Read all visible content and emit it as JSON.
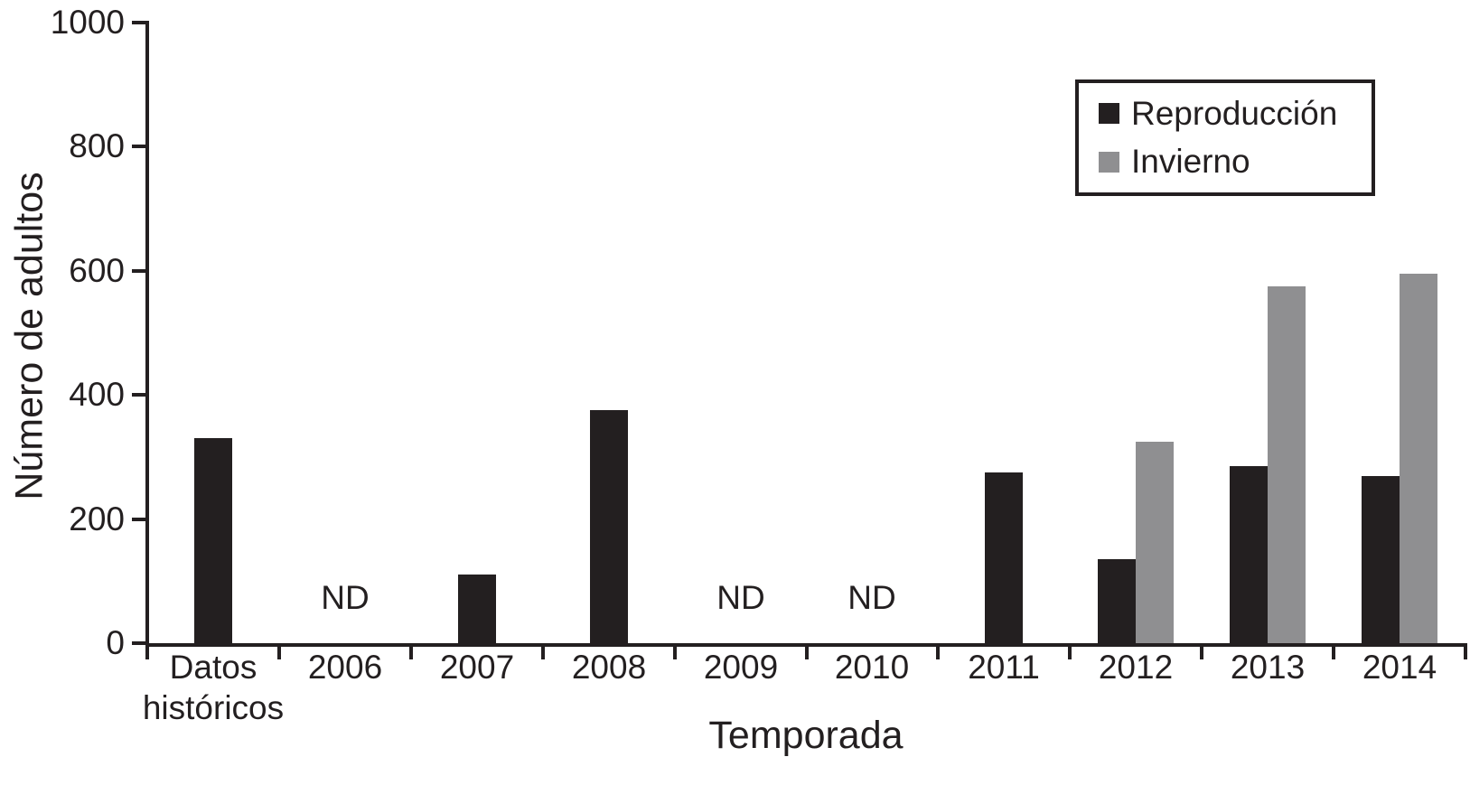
{
  "chart_data": {
    "type": "bar",
    "title": "",
    "xlabel": "Temporada",
    "ylabel": "Número de adultos",
    "ylim": [
      0,
      1000
    ],
    "yticks": [
      0,
      200,
      400,
      600,
      800,
      1000
    ],
    "categories": [
      "Datos\nhistóricos",
      "2006",
      "2007",
      "2008",
      "2009",
      "2010",
      "2011",
      "2012",
      "2013",
      "2014"
    ],
    "no_data_label": "ND",
    "no_data_categories": [
      "2006",
      "2009",
      "2010"
    ],
    "grid": "off",
    "legend_position": "top-right",
    "series": [
      {
        "name": "Reproducción",
        "key": "reproduccion",
        "color": "#231f20",
        "values": [
          330,
          null,
          110,
          375,
          null,
          null,
          275,
          135,
          285,
          270
        ]
      },
      {
        "name": "Invierno",
        "key": "invierno",
        "color": "#8f8f91",
        "values": [
          null,
          null,
          null,
          null,
          null,
          null,
          null,
          325,
          575,
          595
        ]
      }
    ]
  },
  "colors": {
    "ink": "#231f20",
    "bar_dark": "#231f20",
    "bar_gray": "#8f8f91",
    "background": "#ffffff"
  }
}
